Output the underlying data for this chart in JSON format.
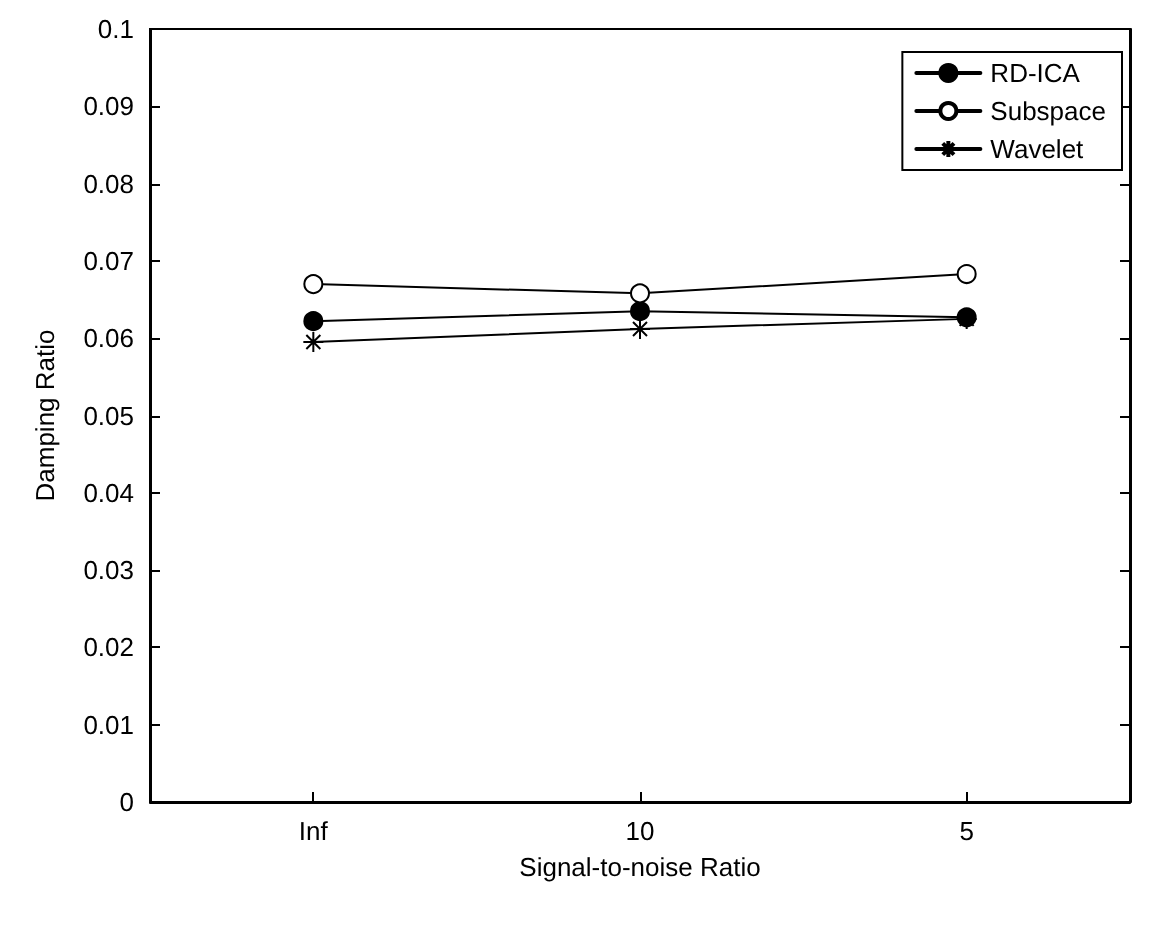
{
  "chart_data": {
    "type": "line",
    "xlabel": "Signal-to-noise Ratio",
    "ylabel": "Damping Ratio",
    "categories": [
      "Inf",
      "10",
      "5"
    ],
    "series": [
      {
        "name": "RD-ICA",
        "color": "#000000",
        "marker": "circle",
        "values": [
          0.0622,
          0.0635,
          0.0627
        ]
      },
      {
        "name": "Subspace",
        "color": "#000000",
        "marker": "circle",
        "values": [
          0.067,
          0.0658,
          0.0683
        ]
      },
      {
        "name": "Wavelet",
        "color": "#000000",
        "marker": "cross",
        "values": [
          0.0595,
          0.0612,
          0.0625
        ]
      }
    ],
    "ylim": [
      0,
      0.1
    ],
    "yticks": [
      0,
      0.01,
      0.02,
      0.03,
      0.04,
      0.05,
      0.06,
      0.07,
      0.08,
      0.09,
      0.1
    ],
    "grid": false,
    "legend": "top right",
    "line_style": "solid"
  }
}
